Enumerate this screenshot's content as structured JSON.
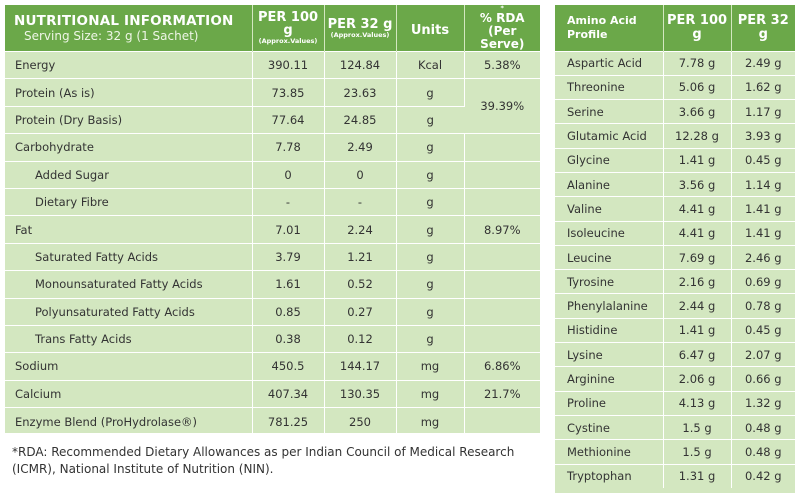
{
  "nutrition": {
    "title": "NUTRITIONAL INFORMATION",
    "serving": "Serving Size: 32 g (1 Sachet)",
    "col_per100_main": "PER 100 g",
    "col_per100_sub": "(Approx.Values)",
    "col_per32_main": "PER 32 g",
    "col_per32_sub": "(Approx.Values)",
    "col_units": "Units",
    "col_rda_star": "*",
    "col_rda_main": "% RDA (Per Serve)",
    "rows": [
      {
        "name": "Energy",
        "per100": "390.11",
        "per32": "124.84",
        "unit": "Kcal",
        "rda": "5.38%"
      },
      {
        "name": "Protein (As is)",
        "per100": "73.85",
        "per32": "23.63",
        "unit": "g",
        "rda": "39.39%"
      },
      {
        "name": "Protein (Dry Basis)",
        "per100": "77.64",
        "per32": "24.85",
        "unit": "g"
      },
      {
        "name": "Carbohydrate",
        "per100": "7.78",
        "per32": "2.49",
        "unit": "g",
        "rda": ""
      },
      {
        "name": "Added Sugar",
        "per100": "0",
        "per32": "0",
        "unit": "g",
        "rda": ""
      },
      {
        "name": "Dietary Fibre",
        "per100": "-",
        "per32": "-",
        "unit": "g",
        "rda": ""
      },
      {
        "name": "Fat",
        "per100": "7.01",
        "per32": "2.24",
        "unit": "g",
        "rda": "8.97%"
      },
      {
        "name": "Saturated Fatty Acids",
        "per100": "3.79",
        "per32": "1.21",
        "unit": "g",
        "rda": ""
      },
      {
        "name": "Monounsaturated Fatty Acids",
        "per100": "1.61",
        "per32": "0.52",
        "unit": "g",
        "rda": ""
      },
      {
        "name": "Polyunsaturated Fatty Acids",
        "per100": "0.85",
        "per32": "0.27",
        "unit": "g",
        "rda": ""
      },
      {
        "name": "Trans Fatty Acids",
        "per100": "0.38",
        "per32": "0.12",
        "unit": "g",
        "rda": ""
      },
      {
        "name": "Sodium",
        "per100": "450.5",
        "per32": "144.17",
        "unit": "mg",
        "rda": "6.86%"
      },
      {
        "name": "Calcium",
        "per100": "407.34",
        "per32": "130.35",
        "unit": "mg",
        "rda": "21.7%"
      },
      {
        "name": "Enzyme Blend (ProHydrolase®)",
        "per100": "781.25",
        "per32": "250",
        "unit": "mg",
        "rda": ""
      }
    ]
  },
  "amino": {
    "col_name": "Amino Acid Profile",
    "col_per100": "PER 100 g",
    "col_per32": "PER 32 g",
    "rows": [
      {
        "name": "Aspartic Acid",
        "per100": "7.78 g",
        "per32": "2.49 g"
      },
      {
        "name": "Threonine",
        "per100": "5.06 g",
        "per32": "1.62 g"
      },
      {
        "name": "Serine",
        "per100": "3.66 g",
        "per32": "1.17 g"
      },
      {
        "name": "Glutamic Acid",
        "per100": "12.28 g",
        "per32": "3.93 g"
      },
      {
        "name": "Glycine",
        "per100": "1.41 g",
        "per32": "0.45 g"
      },
      {
        "name": "Alanine",
        "per100": "3.56 g",
        "per32": "1.14 g"
      },
      {
        "name": "Valine",
        "per100": "4.41 g",
        "per32": "1.41 g"
      },
      {
        "name": "Isoleucine",
        "per100": "4.41 g",
        "per32": "1.41 g"
      },
      {
        "name": "Leucine",
        "per100": "7.69 g",
        "per32": "2.46 g"
      },
      {
        "name": "Tyrosine",
        "per100": "2.16 g",
        "per32": "0.69 g"
      },
      {
        "name": "Phenylalanine",
        "per100": "2.44 g",
        "per32": "0.78 g"
      },
      {
        "name": "Histidine",
        "per100": "1.41 g",
        "per32": "0.45 g"
      },
      {
        "name": "Lysine",
        "per100": "6.47 g",
        "per32": "2.07 g"
      },
      {
        "name": "Arginine",
        "per100": "2.06 g",
        "per32": "0.66 g"
      },
      {
        "name": "Proline",
        "per100": "4.13 g",
        "per32": "1.32 g"
      },
      {
        "name": "Cystine",
        "per100": "1.5 g",
        "per32": "0.48 g"
      },
      {
        "name": "Methionine",
        "per100": "1.5 g",
        "per32": "0.48 g"
      },
      {
        "name": "Tryptophan",
        "per100": "1.31 g",
        "per32": "0.42 g"
      }
    ]
  },
  "footnote": "*RDA: Recommended Dietary Allowances as per Indian Council of Medical Research (ICMR), National Institute of Nutrition (NIN).",
  "colors": {
    "header_green": "#6ba849",
    "panel_green": "#d3e7c0"
  }
}
